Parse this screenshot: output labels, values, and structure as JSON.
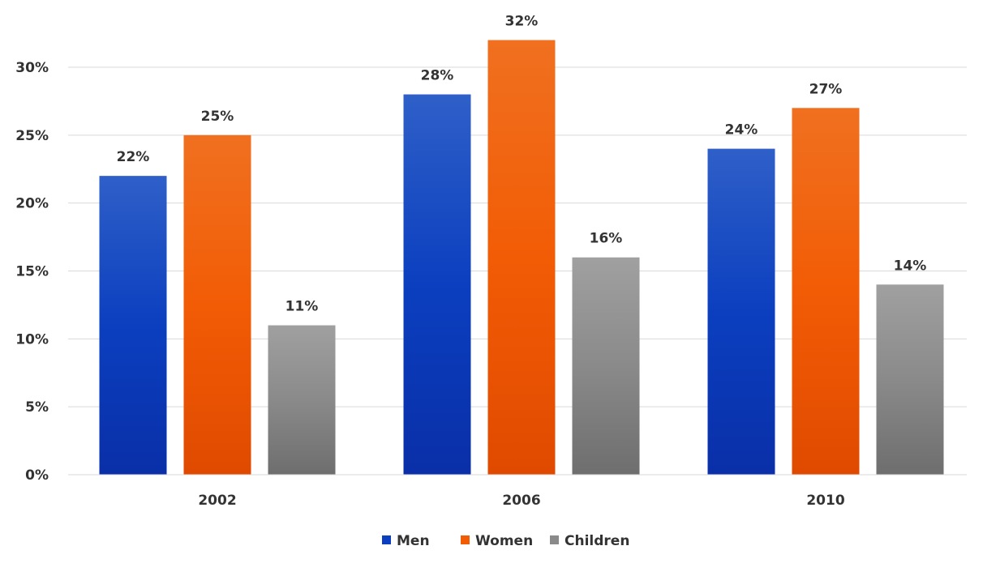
{
  "chart_data": {
    "type": "bar",
    "title": "",
    "xlabel": "",
    "ylabel": "",
    "categories": [
      "2002",
      "2006",
      "2010"
    ],
    "series": [
      {
        "name": "Men",
        "values": [
          22,
          28,
          24
        ],
        "labels": [
          "22%",
          "28%",
          "24%"
        ],
        "color": "#0b3fbf",
        "color_top": "#2f5fc8",
        "color_bottom": "#0a2fa8"
      },
      {
        "name": "Women",
        "values": [
          25,
          32,
          27
        ],
        "labels": [
          "25%",
          "32%",
          "27%"
        ],
        "color": "#f25c05",
        "color_top": "#f07020",
        "color_bottom": "#e04a00"
      },
      {
        "name": "Children",
        "values": [
          11,
          16,
          14
        ],
        "labels": [
          "11%",
          "16%",
          "14%"
        ],
        "color": "#8a8a8a",
        "color_top": "#a0a0a0",
        "color_bottom": "#6e6e6e"
      }
    ],
    "ylim": [
      0,
      30
    ],
    "yticks": [
      0,
      5,
      10,
      15,
      20,
      25,
      30
    ],
    "ytick_labels": [
      "0%",
      "5%",
      "10%",
      "15%",
      "20%",
      "25%",
      "30%"
    ],
    "grid": true,
    "legend": "bottom-center",
    "gridline_color": "#d9d9d9",
    "text_color": "#333333"
  }
}
